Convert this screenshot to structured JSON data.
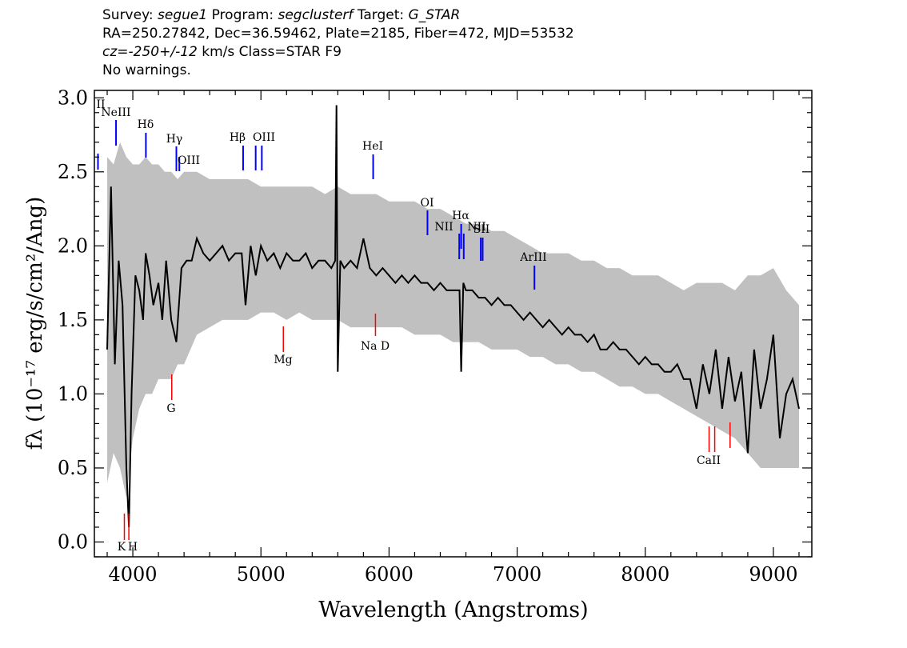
{
  "header": {
    "survey_label": "Survey:",
    "survey": "segue1",
    "program_label": "Program:",
    "program": "segclusterf",
    "target_label": "Target:",
    "target": "G_STAR",
    "line2": "RA=250.27842, Dec=36.59462, Plate=2185, Fiber=472, MJD=53532",
    "cz_label": "cz=",
    "cz_value": "-250+/-12",
    "cz_unit": "km/s",
    "class_text": "Class=STAR F9",
    "warnings": "No warnings."
  },
  "chart_data": {
    "type": "line",
    "xlabel": "Wavelength (Angstroms)",
    "ylabel": "fλ (10⁻¹⁷ erg/s/cm²/Ang)",
    "xlim": [
      3700,
      9300
    ],
    "ylim": [
      -0.1,
      3.05
    ],
    "xticks": [
      4000,
      5000,
      6000,
      7000,
      8000,
      9000
    ],
    "yticks": [
      0.0,
      0.5,
      1.0,
      1.5,
      2.0,
      2.5,
      3.0
    ],
    "grid": false,
    "series": [
      {
        "role": "error-envelope",
        "color": "#c0c0c0",
        "x": [
          3800,
          3850,
          3900,
          3950,
          4000,
          4050,
          4100,
          4150,
          4200,
          4250,
          4300,
          4350,
          4400,
          4500,
          4600,
          4700,
          4800,
          4900,
          5000,
          5100,
          5200,
          5300,
          5400,
          5500,
          5600,
          5700,
          5800,
          5900,
          6000,
          6100,
          6200,
          6300,
          6400,
          6500,
          6600,
          6700,
          6800,
          6900,
          7000,
          7100,
          7200,
          7300,
          7400,
          7500,
          7600,
          7700,
          7800,
          7900,
          8000,
          8100,
          8200,
          8300,
          8400,
          8500,
          8600,
          8700,
          8800,
          8900,
          9000,
          9100,
          9200
        ],
        "upper": [
          2.6,
          2.55,
          2.7,
          2.6,
          2.55,
          2.55,
          2.6,
          2.55,
          2.55,
          2.5,
          2.5,
          2.45,
          2.5,
          2.5,
          2.45,
          2.45,
          2.45,
          2.45,
          2.4,
          2.4,
          2.4,
          2.4,
          2.4,
          2.35,
          2.4,
          2.35,
          2.35,
          2.35,
          2.3,
          2.3,
          2.3,
          2.25,
          2.25,
          2.2,
          2.15,
          2.15,
          2.1,
          2.1,
          2.05,
          2.0,
          1.95,
          1.95,
          1.95,
          1.9,
          1.9,
          1.85,
          1.85,
          1.8,
          1.8,
          1.8,
          1.75,
          1.7,
          1.75,
          1.75,
          1.75,
          1.7,
          1.8,
          1.8,
          1.85,
          1.7,
          1.6
        ],
        "lower": [
          0.4,
          0.6,
          0.5,
          0.3,
          0.7,
          0.9,
          1.0,
          1.0,
          1.1,
          1.1,
          1.1,
          1.2,
          1.2,
          1.4,
          1.45,
          1.5,
          1.5,
          1.5,
          1.55,
          1.55,
          1.5,
          1.55,
          1.5,
          1.5,
          1.5,
          1.45,
          1.45,
          1.45,
          1.45,
          1.45,
          1.4,
          1.4,
          1.4,
          1.35,
          1.35,
          1.35,
          1.3,
          1.3,
          1.3,
          1.25,
          1.25,
          1.2,
          1.2,
          1.15,
          1.15,
          1.1,
          1.05,
          1.05,
          1.0,
          1.0,
          0.95,
          0.9,
          0.85,
          0.8,
          0.75,
          0.7,
          0.6,
          0.5,
          0.5,
          0.5,
          0.5
        ]
      },
      {
        "role": "flux",
        "color": "#000000",
        "x": [
          3800,
          3830,
          3860,
          3890,
          3920,
          3950,
          3970,
          3990,
          4020,
          4050,
          4080,
          4100,
          4130,
          4160,
          4200,
          4230,
          4260,
          4300,
          4340,
          4380,
          4420,
          4460,
          4500,
          4550,
          4600,
          4650,
          4700,
          4750,
          4800,
          4850,
          4880,
          4920,
          4960,
          5000,
          5050,
          5100,
          5150,
          5200,
          5250,
          5300,
          5350,
          5400,
          5450,
          5500,
          5550,
          5580,
          5590,
          5600,
          5620,
          5650,
          5700,
          5750,
          5800,
          5850,
          5900,
          5950,
          6000,
          6050,
          6100,
          6150,
          6200,
          6250,
          6300,
          6350,
          6400,
          6450,
          6500,
          6550,
          6563,
          6580,
          6600,
          6650,
          6700,
          6750,
          6800,
          6850,
          6900,
          6950,
          7000,
          7050,
          7100,
          7150,
          7200,
          7250,
          7300,
          7350,
          7400,
          7450,
          7500,
          7550,
          7600,
          7650,
          7700,
          7750,
          7800,
          7850,
          7900,
          7950,
          8000,
          8050,
          8100,
          8150,
          8200,
          8250,
          8300,
          8350,
          8400,
          8450,
          8500,
          8550,
          8600,
          8650,
          8700,
          8750,
          8800,
          8850,
          8900,
          8950,
          9000,
          9050,
          9100,
          9150,
          9200
        ],
        "values": [
          1.3,
          2.4,
          1.2,
          1.9,
          1.6,
          0.5,
          0.1,
          1.0,
          1.8,
          1.7,
          1.5,
          1.95,
          1.8,
          1.6,
          1.75,
          1.5,
          1.9,
          1.5,
          1.35,
          1.85,
          1.9,
          1.9,
          2.05,
          1.95,
          1.9,
          1.95,
          2.0,
          1.9,
          1.95,
          1.95,
          1.6,
          2.0,
          1.8,
          2.0,
          1.9,
          1.95,
          1.85,
          1.95,
          1.9,
          1.9,
          1.95,
          1.85,
          1.9,
          1.9,
          1.85,
          1.9,
          2.95,
          1.15,
          1.9,
          1.85,
          1.9,
          1.85,
          2.05,
          1.85,
          1.8,
          1.85,
          1.8,
          1.75,
          1.8,
          1.75,
          1.8,
          1.75,
          1.75,
          1.7,
          1.75,
          1.7,
          1.7,
          1.7,
          1.15,
          1.75,
          1.7,
          1.7,
          1.65,
          1.65,
          1.6,
          1.65,
          1.6,
          1.6,
          1.55,
          1.5,
          1.55,
          1.5,
          1.45,
          1.5,
          1.45,
          1.4,
          1.45,
          1.4,
          1.4,
          1.35,
          1.4,
          1.3,
          1.3,
          1.35,
          1.3,
          1.3,
          1.25,
          1.2,
          1.25,
          1.2,
          1.2,
          1.15,
          1.15,
          1.2,
          1.1,
          1.1,
          0.9,
          1.2,
          1.0,
          1.3,
          0.9,
          1.25,
          0.95,
          1.15,
          0.6,
          1.3,
          0.9,
          1.1,
          1.4,
          0.7,
          1.0,
          1.1,
          0.9
        ]
      }
    ],
    "emission_lines": [
      {
        "label": "II",
        "x": 3728
      },
      {
        "label": "NeIII",
        "x": 3869
      },
      {
        "label": "Hδ",
        "x": 4102
      },
      {
        "label": "Hγ",
        "x": 4340
      },
      {
        "label": "OIII",
        "x": 4363
      },
      {
        "label": "Hβ",
        "x": 4861
      },
      {
        "label": "OIII",
        "x": 4959
      },
      {
        "label": "OIII",
        "x": 5007
      },
      {
        "label": "HeI",
        "x": 5876
      },
      {
        "label": "OI",
        "x": 6300
      },
      {
        "label": "NII",
        "x": 6548
      },
      {
        "label": "Hα",
        "x": 6563
      },
      {
        "label": "NII",
        "x": 6583
      },
      {
        "label": "SII",
        "x": 6716
      },
      {
        "label": "SII",
        "x": 6731
      },
      {
        "label": "ArIII",
        "x": 7135
      }
    ],
    "absorption_lines": [
      {
        "label": "K",
        "x": 3934
      },
      {
        "label": "H",
        "x": 3969
      },
      {
        "label": "G",
        "x": 4304
      },
      {
        "label": "Mg",
        "x": 5175
      },
      {
        "label": "Na D",
        "x": 5894
      },
      {
        "label": "CaII",
        "x": 8498
      },
      {
        "label": "CaII",
        "x": 8542
      },
      {
        "label": "CaII",
        "x": 8662
      }
    ],
    "colors": {
      "emission_marker": "#0000ff",
      "absorption_marker": "#ff0000",
      "flux": "#000000",
      "error": "#c0c0c0"
    }
  }
}
